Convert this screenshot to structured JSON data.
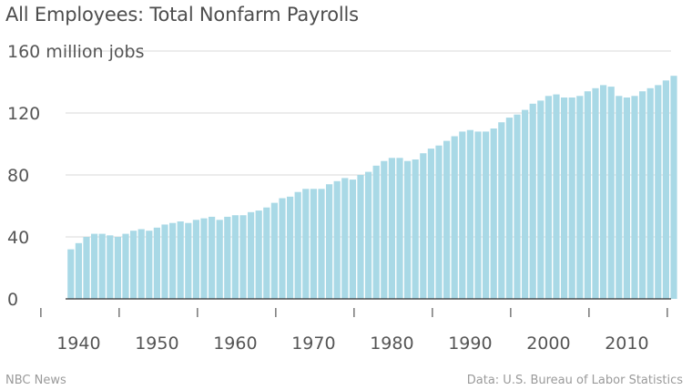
{
  "title": "All Employees: Total Nonfarm Payrolls",
  "footer": {
    "left": "NBC News",
    "right": "Data: U.S. Bureau of Labor Statistics"
  },
  "colors": {
    "bar": "#a9d9e6",
    "grid": "#d9d9d9",
    "axis": "#333333",
    "text": "#555555"
  },
  "chart_data": {
    "type": "bar",
    "title": "All Employees: Total Nonfarm Payrolls",
    "xlabel": "",
    "ylabel": "",
    "ylim": [
      0,
      160
    ],
    "y_ticks": [
      0,
      40,
      80,
      120,
      160
    ],
    "y_tick_labels": [
      "0",
      "40",
      "80",
      "120",
      "160 million jobs"
    ],
    "x_tick_labels": [
      "1940",
      "1950",
      "1960",
      "1970",
      "1980",
      "1990",
      "2000",
      "2010"
    ],
    "grid": true,
    "legend": "none",
    "categories": [
      1939,
      1940,
      1941,
      1942,
      1943,
      1944,
      1945,
      1946,
      1947,
      1948,
      1949,
      1950,
      1951,
      1952,
      1953,
      1954,
      1955,
      1956,
      1957,
      1958,
      1959,
      1960,
      1961,
      1962,
      1963,
      1964,
      1965,
      1966,
      1967,
      1968,
      1969,
      1970,
      1971,
      1972,
      1973,
      1974,
      1975,
      1976,
      1977,
      1978,
      1979,
      1980,
      1981,
      1982,
      1983,
      1984,
      1985,
      1986,
      1987,
      1988,
      1989,
      1990,
      1991,
      1992,
      1993,
      1994,
      1995,
      1996,
      1997,
      1998,
      1999,
      2000,
      2001,
      2002,
      2003,
      2004,
      2005,
      2006,
      2007,
      2008,
      2009,
      2010,
      2011,
      2012,
      2013,
      2014,
      2015,
      2016
    ],
    "values": [
      32,
      36,
      40,
      42,
      42,
      41,
      40,
      42,
      44,
      45,
      44,
      46,
      48,
      49,
      50,
      49,
      51,
      52,
      53,
      51,
      53,
      54,
      54,
      56,
      57,
      59,
      62,
      65,
      66,
      69,
      71,
      71,
      71,
      74,
      76,
      78,
      77,
      80,
      82,
      86,
      89,
      91,
      91,
      89,
      90,
      94,
      97,
      99,
      102,
      105,
      108,
      109,
      108,
      108,
      110,
      114,
      117,
      119,
      122,
      126,
      128,
      131,
      132,
      130,
      130,
      131,
      134,
      136,
      138,
      137,
      131,
      130,
      131,
      134,
      136,
      138,
      141,
      144
    ]
  }
}
